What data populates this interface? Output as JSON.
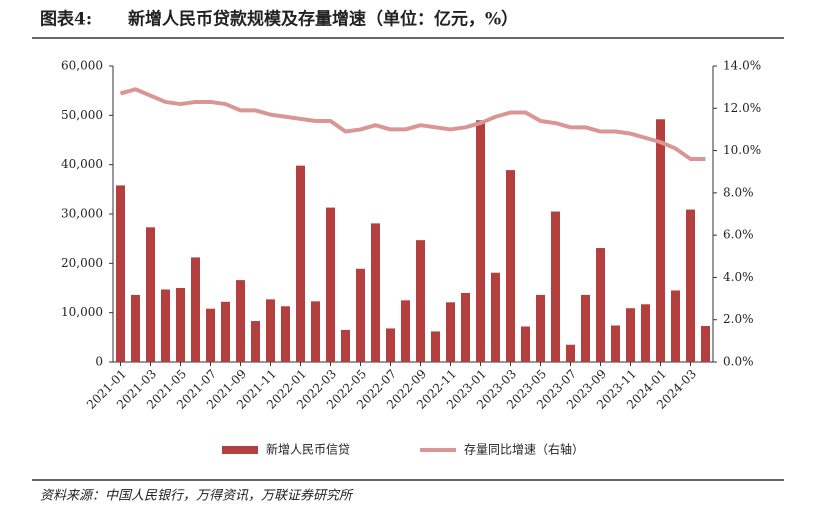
{
  "chart_data": {
    "type": "combo",
    "figure_label": "图表4:",
    "title": "新增人民币贷款规模及存量增速（单位：亿元，%）",
    "source": "资料来源：中国人民银行，万得资讯，万联证券研究所",
    "categories": [
      "2021-01",
      null,
      "2021-03",
      null,
      "2021-05",
      null,
      "2021-07",
      null,
      "2021-09",
      null,
      "2021-11",
      null,
      "2022-01",
      null,
      "2022-03",
      null,
      "2022-05",
      null,
      "2022-07",
      null,
      "2022-09",
      null,
      "2022-11",
      null,
      "2023-01",
      null,
      "2023-03",
      null,
      "2023-05",
      null,
      "2023-07",
      null,
      "2023-09",
      null,
      "2023-11",
      null,
      "2024-01",
      null,
      "2024-03",
      null
    ],
    "series": [
      {
        "name": "新增人民币信贷",
        "type": "bar",
        "color": "#b3403f",
        "values": [
          35800,
          13600,
          27300,
          14700,
          15000,
          21200,
          10800,
          12200,
          16600,
          8300,
          12700,
          11300,
          39800,
          12300,
          31300,
          6500,
          18900,
          28100,
          6800,
          12500,
          24700,
          6200,
          12100,
          14000,
          49000,
          18100,
          38900,
          7200,
          13600,
          30500,
          3500,
          13600,
          23100,
          7400,
          10900,
          11700,
          49200,
          14500,
          30900,
          7300
        ]
      },
      {
        "name": "存量同比增速（右轴）",
        "type": "line",
        "axis": "y2",
        "color": "#d99694",
        "values": [
          12.7,
          12.9,
          12.6,
          12.3,
          12.2,
          12.3,
          12.3,
          12.2,
          11.9,
          11.9,
          11.7,
          11.6,
          11.5,
          11.4,
          11.4,
          10.9,
          11.0,
          11.2,
          11.0,
          11.0,
          11.2,
          11.1,
          11.0,
          11.1,
          11.3,
          11.6,
          11.8,
          11.8,
          11.4,
          11.3,
          11.1,
          11.1,
          10.9,
          10.9,
          10.8,
          10.6,
          10.4,
          10.1,
          9.6,
          9.6
        ]
      }
    ],
    "ylim": [
      0,
      60000
    ],
    "yticks": [
      0,
      {
        "value": 10000,
        "label": "10,000"
      },
      {
        "value": 20000,
        "label": "20,000"
      },
      {
        "value": 30000,
        "label": "30,000"
      },
      {
        "value": 40000,
        "label": "40,000"
      },
      {
        "value": 50000,
        "label": "50,000"
      },
      {
        "value": 60000,
        "label": "60,000"
      }
    ],
    "y2lim": [
      0,
      14
    ],
    "y2ticks": [
      {
        "value": 0,
        "label": "0.0%"
      },
      {
        "value": 2,
        "label": "2.0%"
      },
      {
        "value": 4,
        "label": "4.0%"
      },
      {
        "value": 6,
        "label": "6.0%"
      },
      {
        "value": 8,
        "label": "8.0%"
      },
      {
        "value": 10,
        "label": "10.0%"
      },
      {
        "value": 12,
        "label": "12.0%"
      },
      {
        "value": 14,
        "label": "14.0%"
      }
    ],
    "grid": false,
    "legend": "bottom"
  }
}
